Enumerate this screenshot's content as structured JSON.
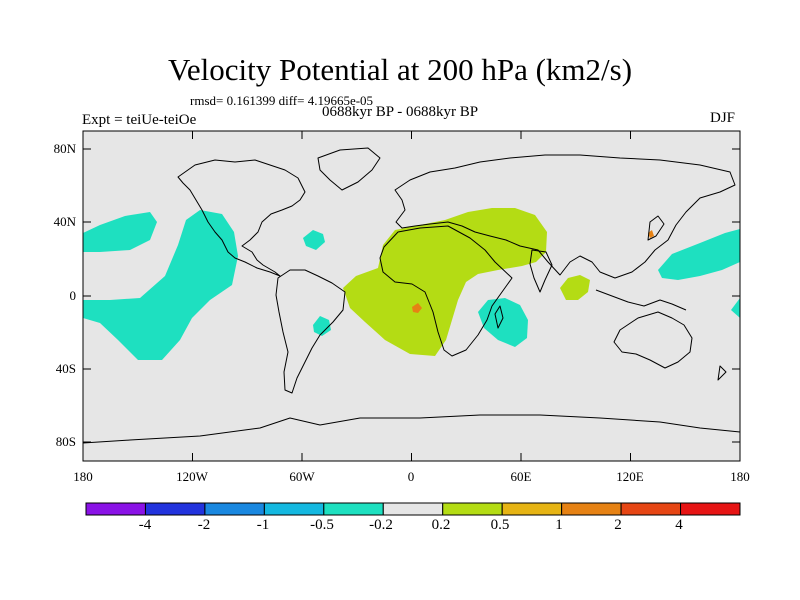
{
  "title": "Velocity Potential at 200 hPa (km2/s)",
  "stats": "rmsd= 0.161399 diff= 4.19665e-05",
  "experiment": "Expt = teiUe-teiOe",
  "period": "0688kyr BP - 0688kyr BP",
  "season": "DJF",
  "lat_labels": [
    "80N",
    "40N",
    "0",
    "40S",
    "80S"
  ],
  "lon_labels": [
    "180",
    "120W",
    "60W",
    "0",
    "60E",
    "120E",
    "180"
  ],
  "colorbar": {
    "labels": [
      "-4",
      "-2",
      "-1",
      "-0.5",
      "-0.2",
      "0.2",
      "0.5",
      "1",
      "2",
      "4"
    ],
    "colors": [
      "#8a12e6",
      "#2233dd",
      "#1a88e0",
      "#14b8e0",
      "#1ee0c0",
      "#e6e6e6",
      "#b4dc14",
      "#e6b414",
      "#e68214",
      "#e64614",
      "#e61414"
    ]
  },
  "colors": {
    "ocean_background": "#e6e6e6",
    "negative_fill": "#1ee0c0",
    "positive_fill": "#b4dc14",
    "positive_high_fill": "#e68214"
  }
}
